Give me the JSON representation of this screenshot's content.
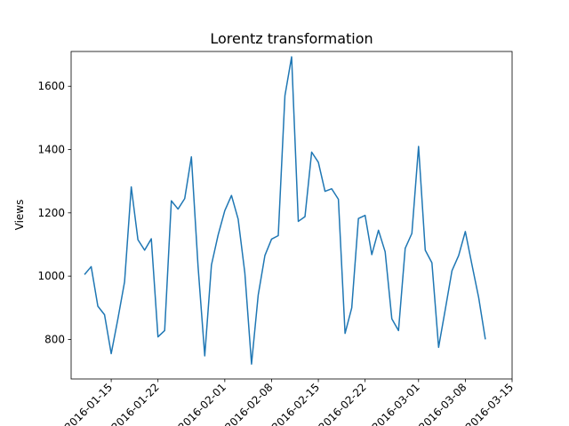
{
  "chart_data": {
    "type": "line",
    "title": "Lorentz transformation",
    "xlabel": "",
    "ylabel": "Views",
    "xlim": [
      "2016-01-09",
      "2016-03-15"
    ],
    "ylim": [
      675,
      1710
    ],
    "grid": false,
    "x_ticks": [
      "2016-01-15",
      "2016-01-22",
      "2016-02-01",
      "2016-02-08",
      "2016-02-15",
      "2016-02-22",
      "2016-03-01",
      "2016-03-08",
      "2016-03-15"
    ],
    "y_ticks": [
      800,
      1000,
      1200,
      1400,
      1600
    ],
    "y_tick_labels": [
      "800",
      "1000",
      "1200",
      "1400",
      "1600"
    ],
    "series": [
      {
        "color": "#1f77b4",
        "x": [
          "2016-01-11",
          "2016-01-12",
          "2016-01-13",
          "2016-01-14",
          "2016-01-15",
          "2016-01-16",
          "2016-01-17",
          "2016-01-18",
          "2016-01-19",
          "2016-01-20",
          "2016-01-21",
          "2016-01-22",
          "2016-01-23",
          "2016-01-24",
          "2016-01-25",
          "2016-01-26",
          "2016-01-27",
          "2016-01-28",
          "2016-01-29",
          "2016-01-30",
          "2016-01-31",
          "2016-02-01",
          "2016-02-02",
          "2016-02-03",
          "2016-02-04",
          "2016-02-05",
          "2016-02-06",
          "2016-02-07",
          "2016-02-08",
          "2016-02-09",
          "2016-02-10",
          "2016-02-11",
          "2016-02-12",
          "2016-02-13",
          "2016-02-14",
          "2016-02-15",
          "2016-02-16",
          "2016-02-17",
          "2016-02-18",
          "2016-02-19",
          "2016-02-20",
          "2016-02-21",
          "2016-02-22",
          "2016-02-23",
          "2016-02-24",
          "2016-02-25",
          "2016-02-26",
          "2016-02-27",
          "2016-02-28",
          "2016-02-29",
          "2016-03-01",
          "2016-03-02",
          "2016-03-03",
          "2016-03-04",
          "2016-03-05",
          "2016-03-06",
          "2016-03-07",
          "2016-03-08",
          "2016-03-09",
          "2016-03-10",
          "2016-03-11"
        ],
        "values": [
          1005,
          1030,
          905,
          878,
          755,
          865,
          982,
          1282,
          1115,
          1082,
          1118,
          808,
          828,
          1238,
          1212,
          1245,
          1377,
          1030,
          748,
          1035,
          1130,
          1207,
          1255,
          1180,
          1010,
          722,
          940,
          1065,
          1117,
          1128,
          1570,
          1693,
          1173,
          1188,
          1392,
          1360,
          1268,
          1276,
          1243,
          819,
          900,
          1182,
          1192,
          1068,
          1145,
          1077,
          865,
          828,
          1088,
          1135,
          1410,
          1082,
          1042,
          775,
          895,
          1017,
          1065,
          1141,
          1035,
          932,
          800
        ]
      }
    ]
  }
}
